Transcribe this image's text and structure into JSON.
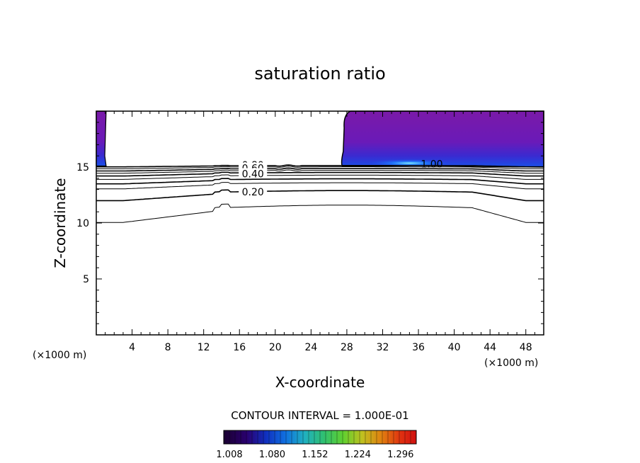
{
  "chart_data": {
    "type": "contour",
    "title": "saturation ratio",
    "xlabel": "X-coordinate",
    "ylabel": "Z-coordinate",
    "x_unit_left": "(×1000 m)",
    "x_unit_right": "(×1000 m)",
    "xlim": [
      0,
      50
    ],
    "ylim": [
      0,
      20
    ],
    "x_ticks": [
      4,
      8,
      12,
      16,
      20,
      24,
      28,
      32,
      36,
      40,
      44,
      48
    ],
    "y_ticks": [
      5,
      10,
      15
    ],
    "x_tick_labels": [
      "4",
      "8",
      "12",
      "16",
      "20",
      "24",
      "28",
      "32",
      "36",
      "40",
      "44",
      "48"
    ],
    "y_tick_labels": [
      "5",
      "10",
      "15"
    ],
    "contour_interval_text": "CONTOUR INTERVAL = 1.000E-01",
    "contour_levels": [
      0.1,
      0.2,
      0.3,
      0.4,
      0.5,
      0.6,
      0.7,
      0.8,
      0.9,
      1.0
    ],
    "contour_labels": [
      {
        "text": "0.80",
        "x": 17.5,
        "z": 15.2
      },
      {
        "text": "0.60",
        "x": 17.5,
        "z": 14.9
      },
      {
        "text": "0.40",
        "x": 17.5,
        "z": 14.4
      },
      {
        "text": "0.20",
        "x": 17.5,
        "z": 12.8
      },
      {
        "text": "1.00",
        "x": 37.5,
        "z": 15.3
      }
    ],
    "colorbar": {
      "min": 1.008,
      "max": 1.332,
      "tick_labels": [
        "1.008",
        "1.080",
        "1.152",
        "1.224",
        "1.296"
      ],
      "colors": [
        "#1a0030",
        "#2a0070",
        "#1020b0",
        "#1060e0",
        "#20a0d0",
        "#30c080",
        "#40d040",
        "#90d020",
        "#e0c000",
        "#f07000",
        "#e03000",
        "#d01010"
      ]
    },
    "shaded_regions": [
      {
        "name": "left-edge-supersaturation",
        "x": [
          0,
          1.1
        ],
        "z": [
          15.1,
          20
        ]
      },
      {
        "name": "upper-right-supersaturation",
        "x": [
          27.5,
          50
        ],
        "z": [
          15.0,
          20
        ]
      }
    ]
  }
}
